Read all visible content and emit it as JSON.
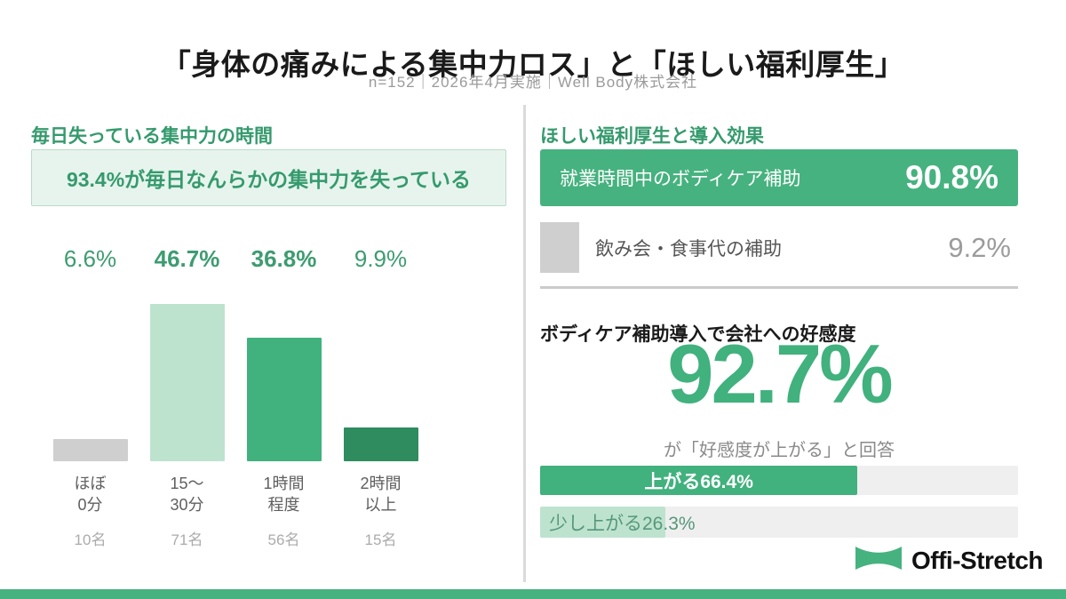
{
  "header": {
    "title": "「身体の痛みによる集中力ロス」と「ほしい福利厚生」",
    "subtitle": "n=152｜2026年4月実施｜Well Body株式会社"
  },
  "colors": {
    "green_primary": "#46b27f",
    "green_mid": "#41b17d",
    "green_dark": "#2f8c5f",
    "green_light": "#bde3cf",
    "green_text": "#359a6d",
    "gray_bar": "#cfcfcf",
    "track_gray": "#efefef",
    "highlight_bg": "#e7f4ed"
  },
  "logo": {
    "text": "Offi-Stretch"
  },
  "chart_data": [
    {
      "type": "bar",
      "title": "毎日失っている集中力の時間",
      "annotation": "93.4%が毎日なんらかの集中力を失っている",
      "categories": [
        "ほぼ0分",
        "15〜30分",
        "1時間程度",
        "2時間以上"
      ],
      "category_lines": [
        [
          "ほぼ",
          "0分"
        ],
        [
          "15〜",
          "30分"
        ],
        [
          "1時間",
          "程度"
        ],
        [
          "2時間",
          "以上"
        ]
      ],
      "values": [
        6.6,
        46.7,
        36.8,
        9.9
      ],
      "value_labels": [
        "6.6%",
        "46.7%",
        "36.8%",
        "9.9%"
      ],
      "counts": [
        "10名",
        "71名",
        "56名",
        "15名"
      ],
      "unit": "%",
      "ylim": [
        0,
        50
      ],
      "bar_colors": [
        "#cfcfcf",
        "#bde3cf",
        "#41b17d",
        "#2f8c5f"
      ],
      "emphasized": [
        false,
        true,
        true,
        false
      ],
      "grid": false,
      "legend": "none"
    },
    {
      "type": "bar",
      "title": "ほしい福利厚生と導入効果",
      "categories": [
        "就業時間中のボディケア補助",
        "飲み会・食事代の補助"
      ],
      "values": [
        90.8,
        9.2
      ],
      "value_labels": [
        "90.8%",
        "9.2%"
      ],
      "unit": "%",
      "bar_colors": [
        "#46b27f",
        "#cfcfcf"
      ],
      "grid": false,
      "legend": "none"
    },
    {
      "type": "bar",
      "title": "ボディケア補助導入で会社への好感度",
      "headline": {
        "value": 92.7,
        "value_label": "92.7%",
        "note": "が「好感度が上がる」と回答"
      },
      "categories": [
        "上がる",
        "少し上がる"
      ],
      "values": [
        66.4,
        26.3
      ],
      "bar_labels": [
        "上がる66.4%",
        "少し上がる26.3%"
      ],
      "unit": "%",
      "xlim": [
        0,
        100
      ],
      "bar_colors": [
        "#41b17d",
        "#bde3cf"
      ],
      "grid": false,
      "legend": "none"
    }
  ]
}
